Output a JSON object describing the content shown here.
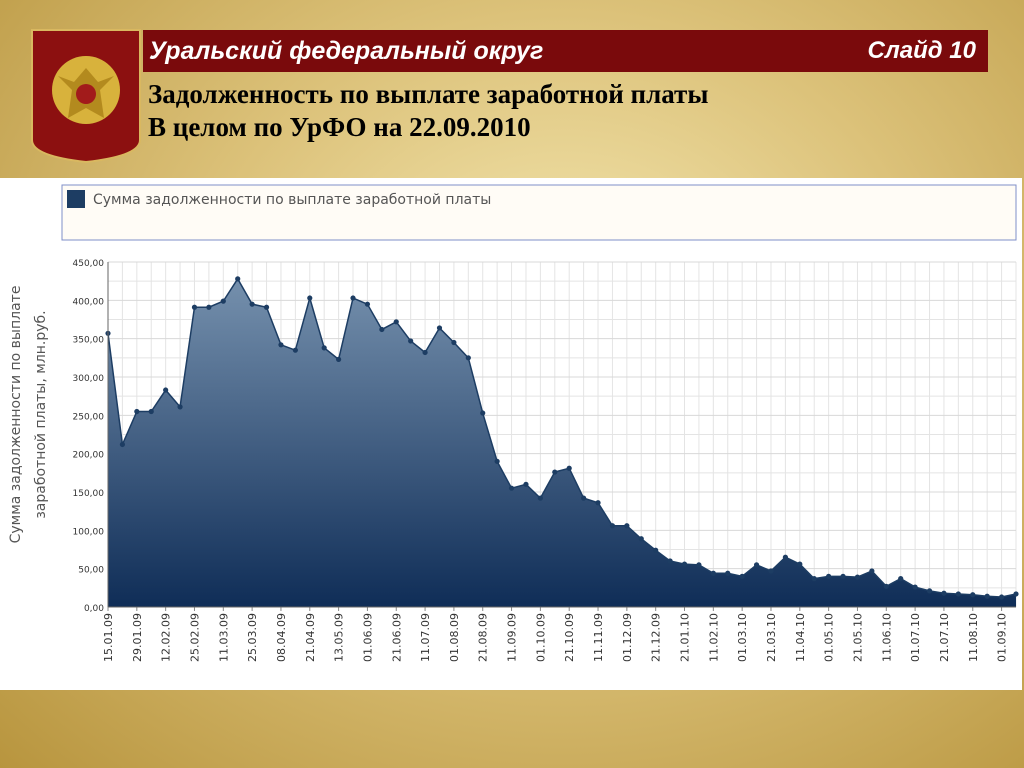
{
  "header": {
    "title": "Уральский федеральный округ",
    "slide": "Слайд 10",
    "subtitle": [
      "Задолженность по выплате заработной платы",
      "В целом по УрФО на 22.09.2010"
    ]
  },
  "chart_data": {
    "type": "area",
    "ylabel": [
      "Сумма задолженности по выплате",
      "заработной платы, млн.руб."
    ],
    "categories": [
      "15.01.09",
      null,
      "29.01.09",
      null,
      "12.02.09",
      null,
      "25.02.09",
      null,
      "11.03.09",
      null,
      "25.03.09",
      null,
      "08.04.09",
      null,
      "21.04.09",
      null,
      "13.05.09",
      null,
      "01.06.09",
      null,
      "21.06.09",
      null,
      "11.07.09",
      null,
      "01.08.09",
      null,
      "21.08.09",
      null,
      "11.09.09",
      null,
      "01.10.09",
      null,
      "21.10.09",
      null,
      "11.11.09",
      null,
      "01.12.09",
      null,
      "21.12.09",
      null,
      "21.01.10",
      null,
      "11.02.10",
      null,
      "01.03.10",
      null,
      "21.03.10",
      null,
      "11.04.10",
      null,
      "01.05.10",
      null,
      "21.05.10",
      null,
      "11.06.10",
      null,
      "01.07.10",
      null,
      "21.07.10",
      null,
      "11.08.10",
      null,
      "01.09.10",
      null
    ],
    "series": [
      {
        "name": "Сумма задолженности по выплате заработной платы",
        "color": "#1d3d63",
        "values": [
          357,
          212,
          255,
          255,
          283,
          261,
          391,
          391,
          399,
          428,
          395,
          391,
          342,
          335,
          403,
          338,
          323,
          403,
          395,
          362,
          372,
          347,
          332,
          364,
          345,
          325,
          253,
          190,
          155,
          160,
          142,
          176,
          181,
          142,
          136,
          106,
          106,
          89,
          74,
          60,
          56,
          55,
          44,
          44,
          40,
          55,
          47,
          65,
          56,
          37,
          40,
          40,
          39,
          47,
          27,
          37,
          26,
          21,
          18,
          17,
          16,
          14,
          13,
          17
        ]
      }
    ],
    "ylim": [
      0,
      450
    ],
    "yticks": [
      {
        "value": 0,
        "label": "0,00"
      },
      {
        "value": 50,
        "label": "50,00"
      },
      {
        "value": 100,
        "label": "100,00"
      },
      {
        "value": 150,
        "label": "150,00"
      },
      {
        "value": 200,
        "label": "200,00"
      },
      {
        "value": 250,
        "label": "250,00"
      },
      {
        "value": 300,
        "label": "300,00"
      },
      {
        "value": 350,
        "label": "350,00"
      },
      {
        "value": 400,
        "label": "400,00"
      },
      {
        "value": 450,
        "label": "450,00"
      }
    ],
    "grid": true,
    "legend": "top"
  }
}
